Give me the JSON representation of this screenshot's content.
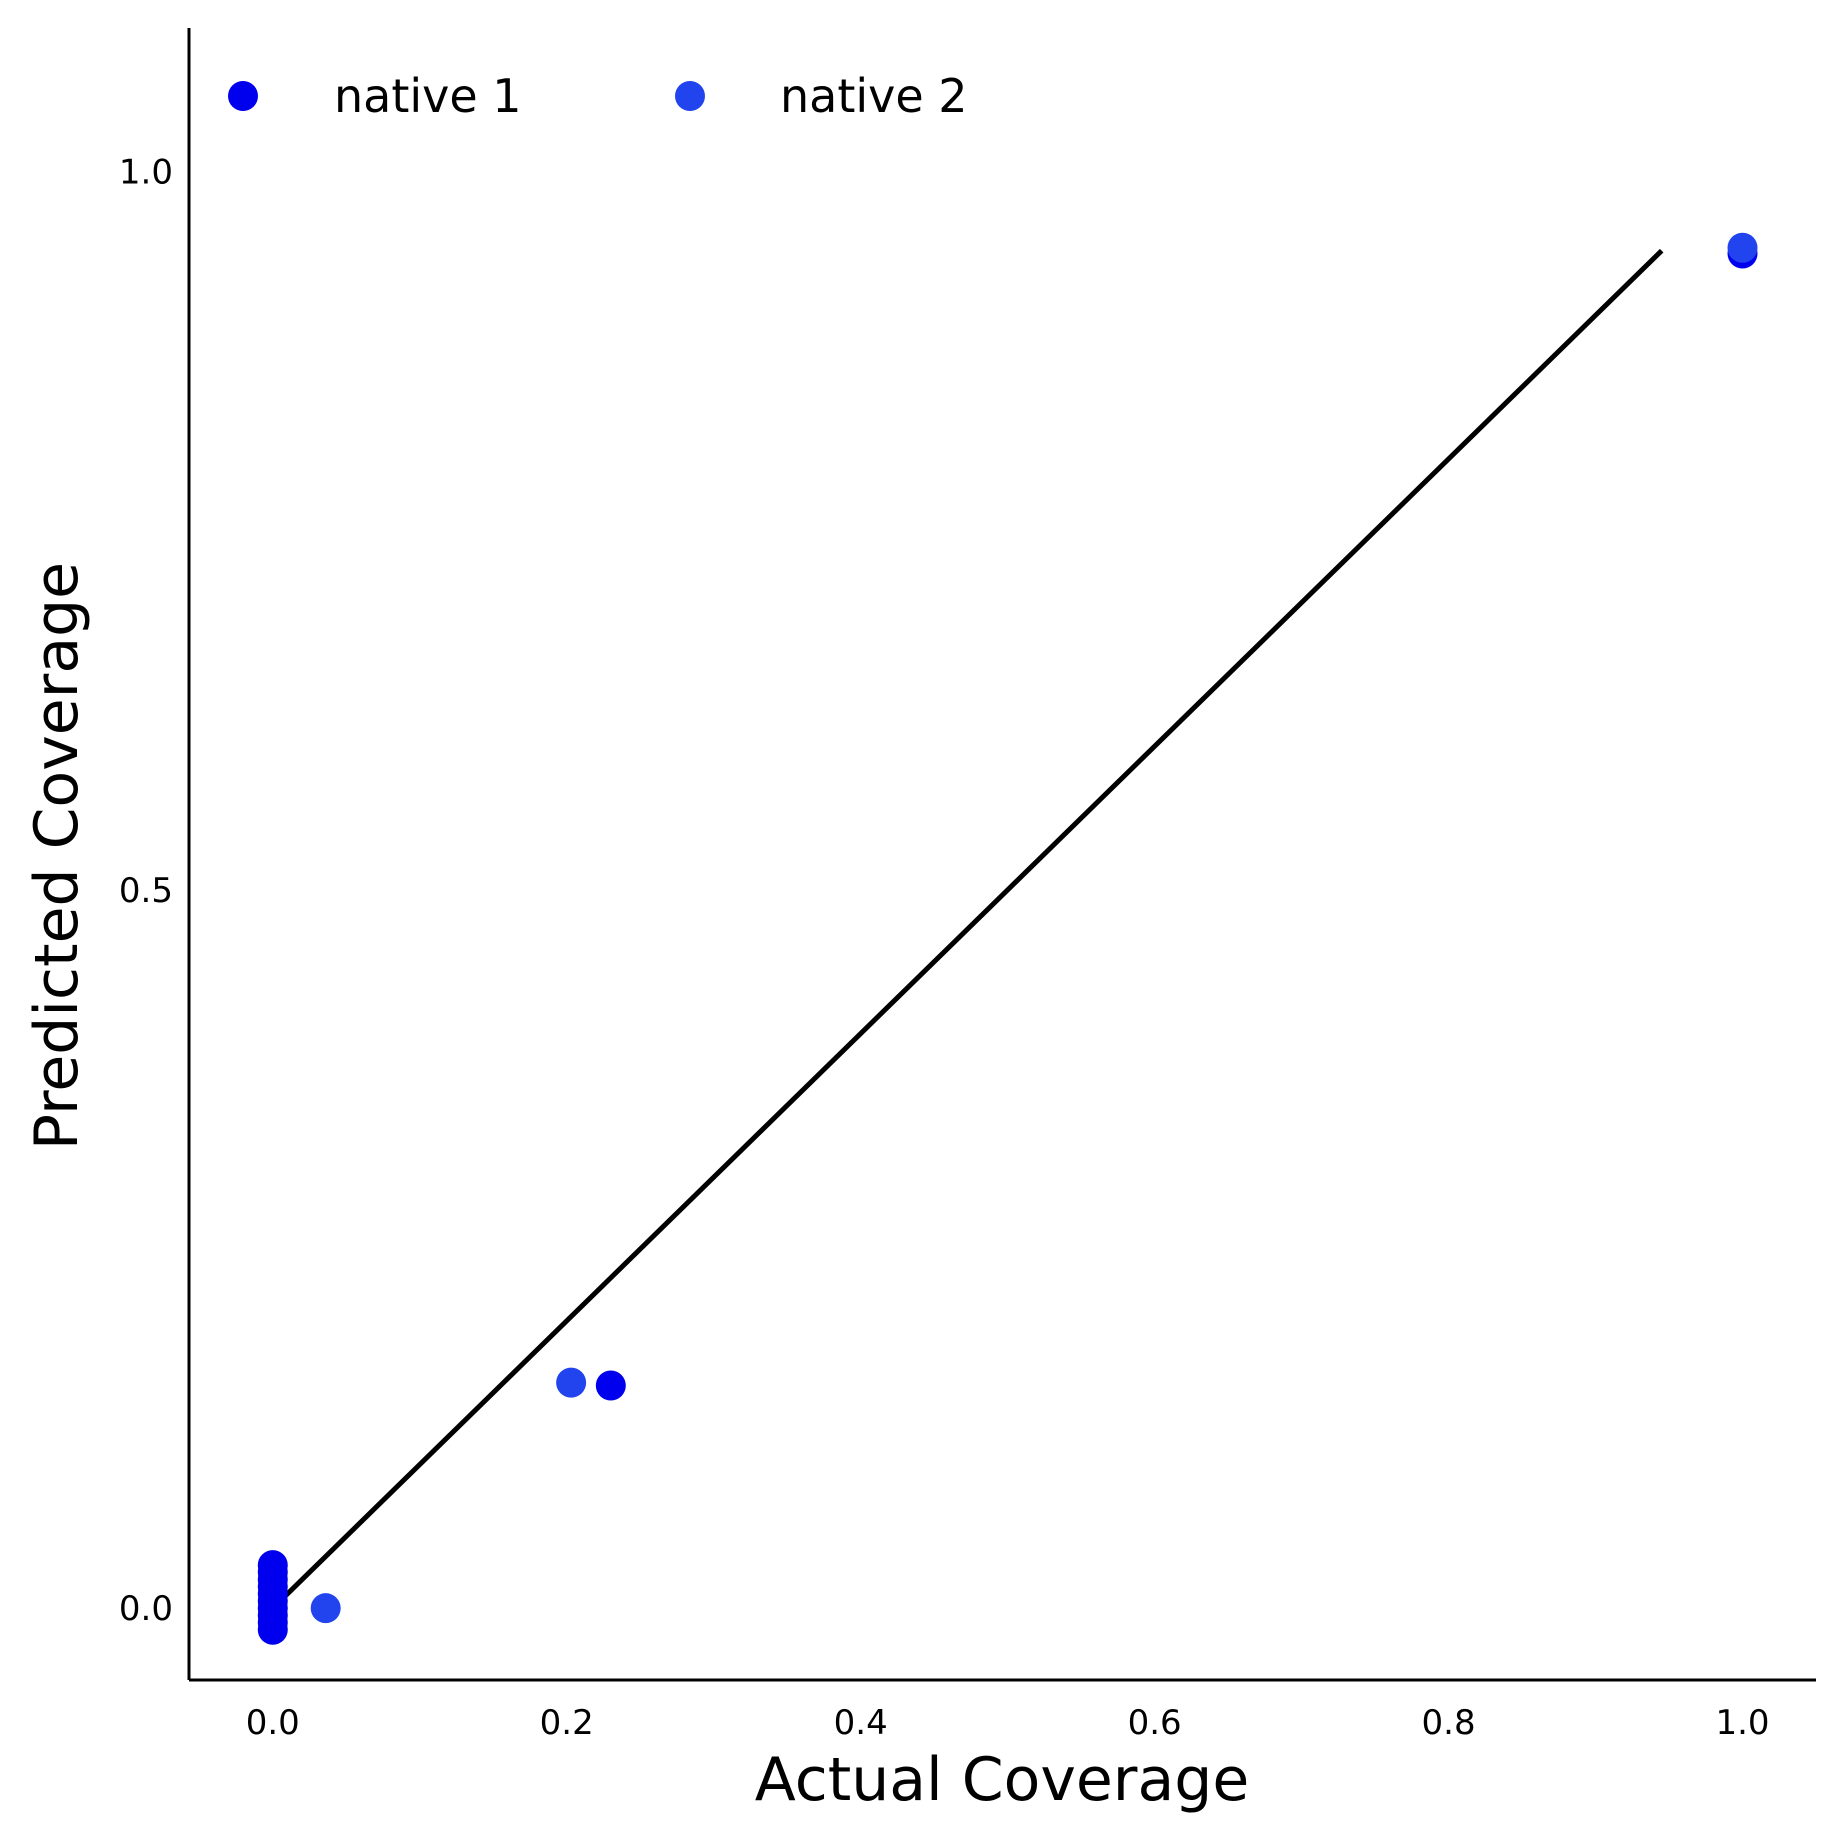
{
  "chart_data": {
    "type": "scatter",
    "title": "",
    "xlabel": "Actual Coverage",
    "ylabel": "Predicted Coverage",
    "xlim": [
      -0.057,
      1.05
    ],
    "ylim": [
      -0.05,
      1.1
    ],
    "xticks": [
      0.0,
      0.2,
      0.4,
      0.6,
      0.8,
      1.0
    ],
    "xtick_labels": [
      "0.0",
      "0.2",
      "0.4",
      "0.6",
      "0.8",
      "1.0"
    ],
    "yticks": [
      0.0,
      0.5,
      1.0
    ],
    "ytick_labels": [
      "0.0",
      "0.5",
      "1.0"
    ],
    "grid": false,
    "legend": {
      "position": "top-left",
      "columns": 2
    },
    "series": [
      {
        "name": "native 1",
        "color": "#0000ee",
        "points": [
          {
            "x": 0.0,
            "y": 0.0
          },
          {
            "x": 0.0,
            "y": 0.005
          },
          {
            "x": 0.0,
            "y": 0.01
          },
          {
            "x": 0.0,
            "y": 0.015
          },
          {
            "x": 0.0,
            "y": 0.02
          },
          {
            "x": 0.0,
            "y": 0.025
          },
          {
            "x": 0.0,
            "y": 0.03
          },
          {
            "x": 0.0,
            "y": -0.005
          },
          {
            "x": 0.0,
            "y": -0.01
          },
          {
            "x": 0.0,
            "y": -0.015
          },
          {
            "x": 0.23,
            "y": 0.155
          },
          {
            "x": 1.0,
            "y": 0.943
          }
        ]
      },
      {
        "name": "native 2",
        "color": "#2244ee",
        "points": [
          {
            "x": 0.036,
            "y": 0.0
          },
          {
            "x": 0.203,
            "y": 0.157
          },
          {
            "x": 1.0,
            "y": 0.947
          }
        ]
      }
    ],
    "reference_line": {
      "x": [
        0.0,
        0.945
      ],
      "y": [
        0.0,
        0.945
      ],
      "color": "#000000"
    }
  }
}
